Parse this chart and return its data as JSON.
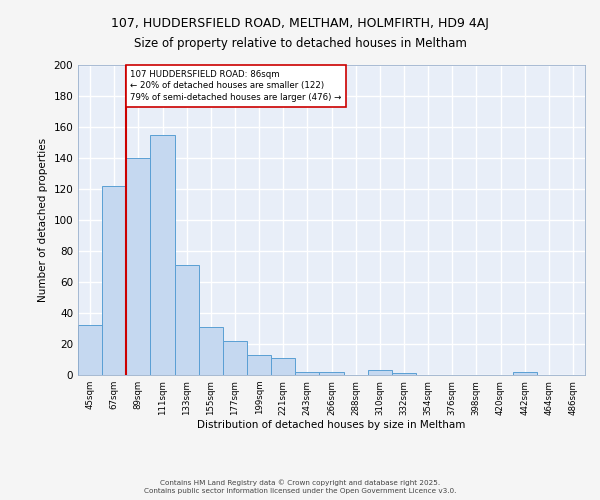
{
  "title_line1": "107, HUDDERSFIELD ROAD, MELTHAM, HOLMFIRTH, HD9 4AJ",
  "title_line2": "Size of property relative to detached houses in Meltham",
  "xlabel": "Distribution of detached houses by size in Meltham",
  "ylabel": "Number of detached properties",
  "bin_labels": [
    "45sqm",
    "67sqm",
    "89sqm",
    "111sqm",
    "133sqm",
    "155sqm",
    "177sqm",
    "199sqm",
    "221sqm",
    "243sqm",
    "266sqm",
    "288sqm",
    "310sqm",
    "332sqm",
    "354sqm",
    "376sqm",
    "398sqm",
    "420sqm",
    "442sqm",
    "464sqm",
    "486sqm"
  ],
  "bar_values": [
    32,
    122,
    140,
    155,
    71,
    31,
    22,
    13,
    11,
    2,
    2,
    0,
    3,
    1,
    0,
    0,
    0,
    0,
    2,
    0,
    0
  ],
  "bar_color": "#c5d8f0",
  "bar_edge_color": "#5a9fd4",
  "vline_color": "#cc0000",
  "annotation_text": "107 HUDDERSFIELD ROAD: 86sqm\n← 20% of detached houses are smaller (122)\n79% of semi-detached houses are larger (476) →",
  "annotation_box_color": "#ffffff",
  "annotation_box_edge": "#cc0000",
  "ylim": [
    0,
    200
  ],
  "yticks": [
    0,
    20,
    40,
    60,
    80,
    100,
    120,
    140,
    160,
    180,
    200
  ],
  "background_color": "#e8eef8",
  "grid_color": "#ffffff",
  "fig_background": "#f5f5f5",
  "footer": "Contains HM Land Registry data © Crown copyright and database right 2025.\nContains public sector information licensed under the Open Government Licence v3.0."
}
